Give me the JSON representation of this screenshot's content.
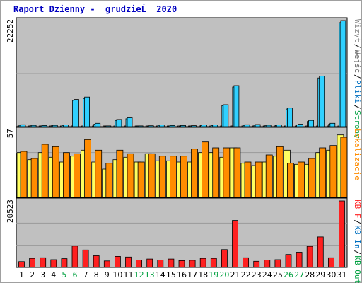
{
  "title": "Raport Dzienny -  grudzieĹ  2020",
  "colors": {
    "panel_bg": "#c0c0c0",
    "grid": "#9a9a9a",
    "visits": "#c8c8c8",
    "files": "#30d0ff",
    "pages": "#ffff60",
    "hits": "#ff8c00",
    "kbf": "#ff2020",
    "weekend_label": "#00a040",
    "weekday_label": "#000000"
  },
  "chart_data": [
    {
      "type": "bar",
      "panel": "top",
      "ytick_label": "22252",
      "ylim": [
        0,
        22252
      ],
      "categories": [
        "1",
        "2",
        "3",
        "4",
        "5",
        "6",
        "7",
        "8",
        "9",
        "10",
        "11",
        "12",
        "13",
        "14",
        "15",
        "16",
        "17",
        "18",
        "19",
        "20",
        "21",
        "22",
        "23",
        "24",
        "25",
        "26",
        "27",
        "28",
        "29",
        "30",
        "31"
      ],
      "weekend_days": [
        "5",
        "6",
        "12",
        "13",
        "19",
        "20",
        "26",
        "27"
      ],
      "legend": [
        {
          "text": "Wizyt",
          "color": "#808080"
        },
        {
          "text": "Wejść",
          "color": "#606060"
        },
        {
          "text": "Pliki",
          "color": "#0070c0"
        },
        {
          "text": "Strony",
          "color": "#00a040"
        }
      ],
      "series": [
        {
          "name": "Wizyt",
          "values": [
            80,
            60,
            60,
            60,
            70,
            100,
            120,
            70,
            40,
            80,
            90,
            60,
            50,
            60,
            70,
            50,
            50,
            60,
            60,
            100,
            120,
            70,
            60,
            50,
            60,
            90,
            60,
            80,
            100,
            80,
            120
          ]
        },
        {
          "name": "Wejść",
          "values": [
            300,
            180,
            170,
            190,
            250,
            5500,
            5900,
            500,
            110,
            1300,
            1650,
            120,
            130,
            260,
            160,
            170,
            150,
            250,
            250,
            4400,
            8300,
            280,
            320,
            200,
            250,
            3700,
            370,
            1100,
            10200,
            520,
            21800
          ]
        },
        {
          "name": "Pliki",
          "values": [
            400,
            260,
            240,
            270,
            350,
            5700,
            6200,
            700,
            160,
            1500,
            1850,
            170,
            190,
            380,
            230,
            240,
            210,
            350,
            350,
            4600,
            8600,
            400,
            450,
            290,
            350,
            3900,
            520,
            1300,
            10600,
            700,
            22252
          ]
        }
      ]
    },
    {
      "type": "bar",
      "panel": "middle",
      "ytick_label": "57",
      "ylim": [
        0,
        57
      ],
      "legend": [
        {
          "text": "Lokalizacje",
          "color": "#ff8c00"
        }
      ],
      "series": [
        {
          "name": "Strony",
          "values": [
            38,
            32,
            38,
            34,
            30,
            35,
            40,
            30,
            24,
            32,
            34,
            30,
            37,
            31,
            31,
            30,
            30,
            38,
            38,
            34,
            42,
            29,
            27,
            30,
            35,
            40,
            28,
            28,
            38,
            40,
            53
          ]
        },
        {
          "name": "Lokalizacje",
          "values": [
            39,
            33,
            45,
            43,
            38,
            37,
            49,
            40,
            29,
            40,
            37,
            30,
            37,
            35,
            35,
            35,
            41,
            47,
            42,
            42,
            42,
            30,
            30,
            36,
            43,
            29,
            30,
            33,
            42,
            44,
            51
          ]
        }
      ]
    },
    {
      "type": "bar",
      "panel": "bottom",
      "ytick_label": "20523",
      "ylim": [
        0,
        20523
      ],
      "legend": [
        {
          "text": "KB F",
          "color": "#ff2020"
        },
        {
          "text": "KB In",
          "color": "#0070c0"
        },
        {
          "text": "KB Out",
          "color": "#00a040"
        }
      ],
      "series": [
        {
          "name": "KB F",
          "values": [
            1800,
            2800,
            3000,
            2400,
            2700,
            6600,
            5400,
            3600,
            2000,
            3400,
            3200,
            2300,
            2600,
            2300,
            2600,
            2100,
            2200,
            2800,
            2800,
            5500,
            14500,
            3000,
            1900,
            2300,
            2400,
            4000,
            4700,
            6500,
            9400,
            3000,
            20523
          ]
        }
      ]
    }
  ]
}
